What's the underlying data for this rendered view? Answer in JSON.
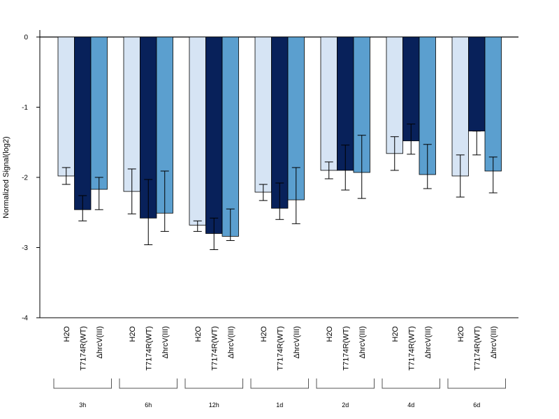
{
  "chart_data": {
    "type": "bar",
    "ylabel": "Normalized Signal(log2)",
    "ylim": [
      -4,
      0
    ],
    "yticks": [
      "0",
      "-1",
      "-2",
      "-3",
      "-4"
    ],
    "yticks_values": [
      0,
      -1,
      -2,
      -3,
      -4
    ],
    "treatments": [
      "H2O",
      "T7174R(WT)",
      "ΔhrcV(III)"
    ],
    "groups": [
      "3h",
      "6h",
      "12h",
      "1d",
      "2d",
      "4d",
      "6d"
    ],
    "colors": [
      "#d6e4f4",
      "#08215a",
      "#5b9fcf"
    ],
    "series": [
      {
        "treatment_index": 0,
        "values": [
          -1.98,
          -2.2,
          -2.68,
          -2.21,
          -1.9,
          -1.66,
          -1.98
        ],
        "err_low": [
          -2.1,
          -2.52,
          -2.77,
          -2.33,
          -2.02,
          -1.9,
          -2.28
        ],
        "err_high": [
          -1.86,
          -1.88,
          -2.62,
          -2.1,
          -1.78,
          -1.42,
          -1.68
        ]
      },
      {
        "treatment_index": 1,
        "values": [
          -2.46,
          -2.58,
          -2.8,
          -2.44,
          -1.9,
          -1.48,
          -1.34
        ],
        "err_low": [
          -2.62,
          -2.96,
          -3.03,
          -2.6,
          -2.18,
          -1.67,
          -1.68
        ],
        "err_high": [
          -2.26,
          -2.03,
          -2.58,
          -2.08,
          -1.54,
          -1.24,
          -1.34
        ]
      },
      {
        "treatment_index": 2,
        "values": [
          -2.17,
          -2.51,
          -2.84,
          -2.32,
          -1.93,
          -1.96,
          -1.91
        ],
        "err_low": [
          -2.46,
          -2.77,
          -2.9,
          -2.66,
          -2.3,
          -2.16,
          -2.22
        ],
        "err_high": [
          -2.0,
          -1.91,
          -2.45,
          -1.86,
          -1.4,
          -1.53,
          -1.71
        ]
      }
    ],
    "grid": false,
    "legend": "none"
  }
}
